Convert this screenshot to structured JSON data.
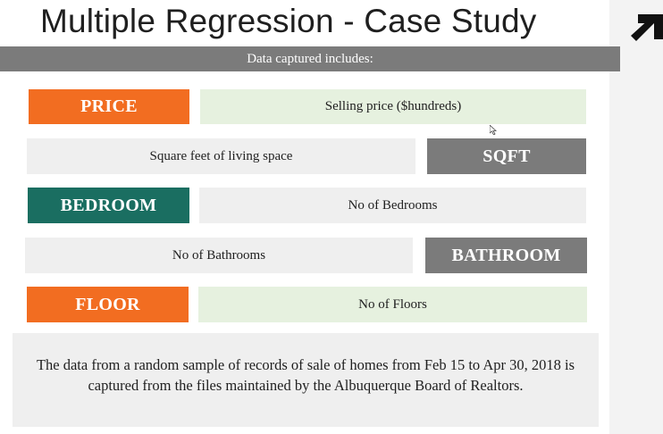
{
  "slide": {
    "title": "Multiple Regression - Case Study",
    "banner": "Data  captured includes:",
    "variables": [
      {
        "label": "PRICE",
        "description": "Selling price ($hundreds)"
      },
      {
        "label": "SQFT",
        "description": "Square feet of living space"
      },
      {
        "label": "BEDROOM",
        "description": "No of Bedrooms"
      },
      {
        "label": "BATHROOM",
        "description": "No of Bathrooms"
      },
      {
        "label": "FLOOR",
        "description": "No of Floors"
      }
    ],
    "note": "The data from a random sample of records of sale of homes from Feb 15 to Apr 30, 2018 is captured from the files maintained by the Albuquerque Board of Realtors."
  },
  "colors": {
    "orange": "#f26d21",
    "teal": "#1a6e61",
    "gray": "#7b7b7b",
    "green_light": "#e6f1df",
    "gray_light": "#efefef"
  },
  "icons": {
    "logo": "arrow-logo-icon",
    "cursor": "mouse-cursor-icon"
  }
}
